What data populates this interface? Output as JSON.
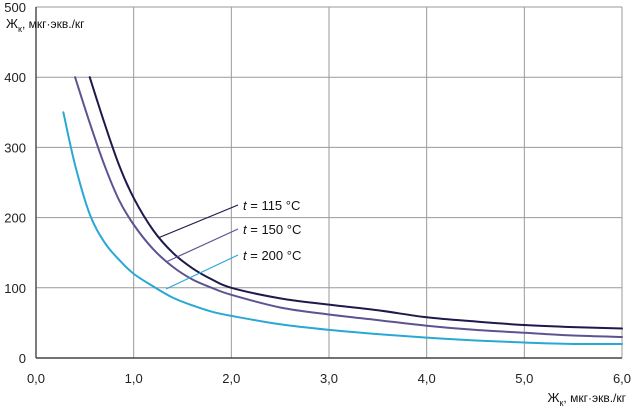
{
  "chart_data": {
    "type": "line",
    "title": "",
    "xlabel_main": "Ж",
    "xlabel_sub": "к",
    "xlabel_rest": ", мкг·экв./кг",
    "ylabel_main": "Ж",
    "ylabel_sub": "к",
    "ylabel_rest": ", мкг·экв./кг",
    "xlim": [
      0,
      6
    ],
    "ylim": [
      0,
      500
    ],
    "xticks": [
      0,
      1,
      2,
      3,
      4,
      5,
      6
    ],
    "xtick_labels": [
      "0,0",
      "1,0",
      "2,0",
      "3,0",
      "4,0",
      "5,0",
      "6,0"
    ],
    "yticks": [
      0,
      100,
      200,
      300,
      400,
      500
    ],
    "ytick_labels": [
      "0",
      "100",
      "200",
      "300",
      "400",
      "500"
    ],
    "grid": true,
    "series": [
      {
        "name": "t = 115 °C",
        "label_var": "t",
        "label_rest": " = 115 °C",
        "color": "#1c1a4a",
        "x": [
          0.55,
          0.7,
          0.85,
          1.0,
          1.2,
          1.4,
          1.6,
          1.8,
          2.0,
          2.5,
          3.0,
          3.5,
          4.0,
          4.5,
          5.0,
          5.5,
          6.0
        ],
        "y": [
          400,
          335,
          275,
          228,
          182,
          150,
          128,
          112,
          100,
          85,
          76,
          68,
          58,
          52,
          47,
          44,
          42
        ]
      },
      {
        "name": "t = 150 °C",
        "label_var": "t",
        "label_rest": " = 150 °C",
        "color": "#5e5391",
        "x": [
          0.4,
          0.55,
          0.7,
          0.85,
          1.0,
          1.2,
          1.4,
          1.6,
          1.8,
          2.0,
          2.5,
          3.0,
          3.5,
          4.0,
          4.5,
          5.0,
          5.5,
          6.0
        ],
        "y": [
          400,
          335,
          275,
          225,
          190,
          155,
          130,
          112,
          100,
          90,
          72,
          62,
          54,
          46,
          40,
          36,
          32,
          30
        ]
      },
      {
        "name": "t = 200 °C",
        "label_var": "t",
        "label_rest": " = 200 °C",
        "color": "#2aa8d4",
        "x": [
          0.28,
          0.4,
          0.55,
          0.7,
          0.85,
          1.0,
          1.2,
          1.4,
          1.6,
          1.8,
          2.0,
          2.5,
          3.0,
          3.5,
          4.0,
          4.5,
          5.0,
          5.5,
          6.0
        ],
        "y": [
          350,
          275,
          205,
          165,
          140,
          120,
          102,
          86,
          75,
          66,
          60,
          48,
          40,
          34,
          29,
          25,
          22,
          20,
          20
        ]
      }
    ]
  }
}
